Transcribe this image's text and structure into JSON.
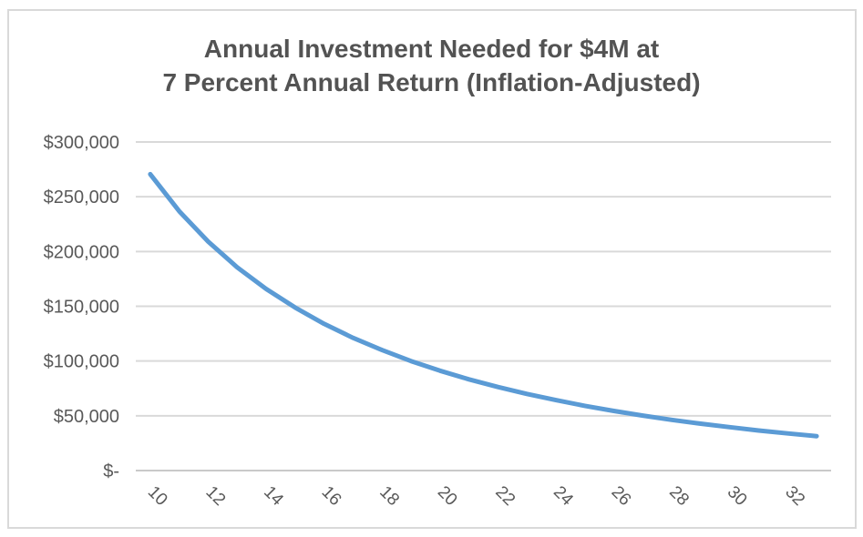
{
  "chart": {
    "title_line1": "Annual Investment Needed for $4M at",
    "title_line2": "7 Percent Annual Return (Inflation-Adjusted)"
  },
  "chart_data": {
    "type": "line",
    "title": "Annual Investment Needed for $4M at 7 Percent Annual Return (Inflation-Adjusted)",
    "xlabel": "",
    "ylabel": "",
    "x": [
      10,
      11,
      12,
      13,
      14,
      15,
      16,
      17,
      18,
      19,
      20,
      21,
      22,
      23,
      24,
      25,
      26,
      27,
      28,
      29,
      30,
      31,
      32,
      33
    ],
    "values": [
      270600,
      236800,
      209000,
      185600,
      165800,
      148800,
      134000,
      121200,
      110000,
      100000,
      91200,
      83300,
      76300,
      70000,
      64300,
      59100,
      54400,
      50200,
      46300,
      42800,
      39600,
      36600,
      33900,
      31400
    ],
    "x_tick_labels": [
      "10",
      "12",
      "14",
      "16",
      "18",
      "20",
      "22",
      "24",
      "26",
      "28",
      "30",
      "32"
    ],
    "x_tick_values": [
      10,
      12,
      14,
      16,
      18,
      20,
      22,
      24,
      26,
      28,
      30,
      32
    ],
    "y_tick_labels": [
      "$300,000",
      "$250,000",
      "$200,000",
      "$150,000",
      "$100,000",
      "$50,000",
      "$-"
    ],
    "y_tick_values": [
      300000,
      250000,
      200000,
      150000,
      100000,
      50000,
      0
    ],
    "ylim": [
      0,
      300000
    ],
    "grid": "horizontal",
    "legend": "none",
    "line_color": "#5B9BD5",
    "gridline_color": "#D9D9D9",
    "axis_line_color": "#C9C9C9",
    "tick_label_color": "#595959",
    "title_color": "#535353",
    "frame_border_color": "#D9D9D9"
  }
}
